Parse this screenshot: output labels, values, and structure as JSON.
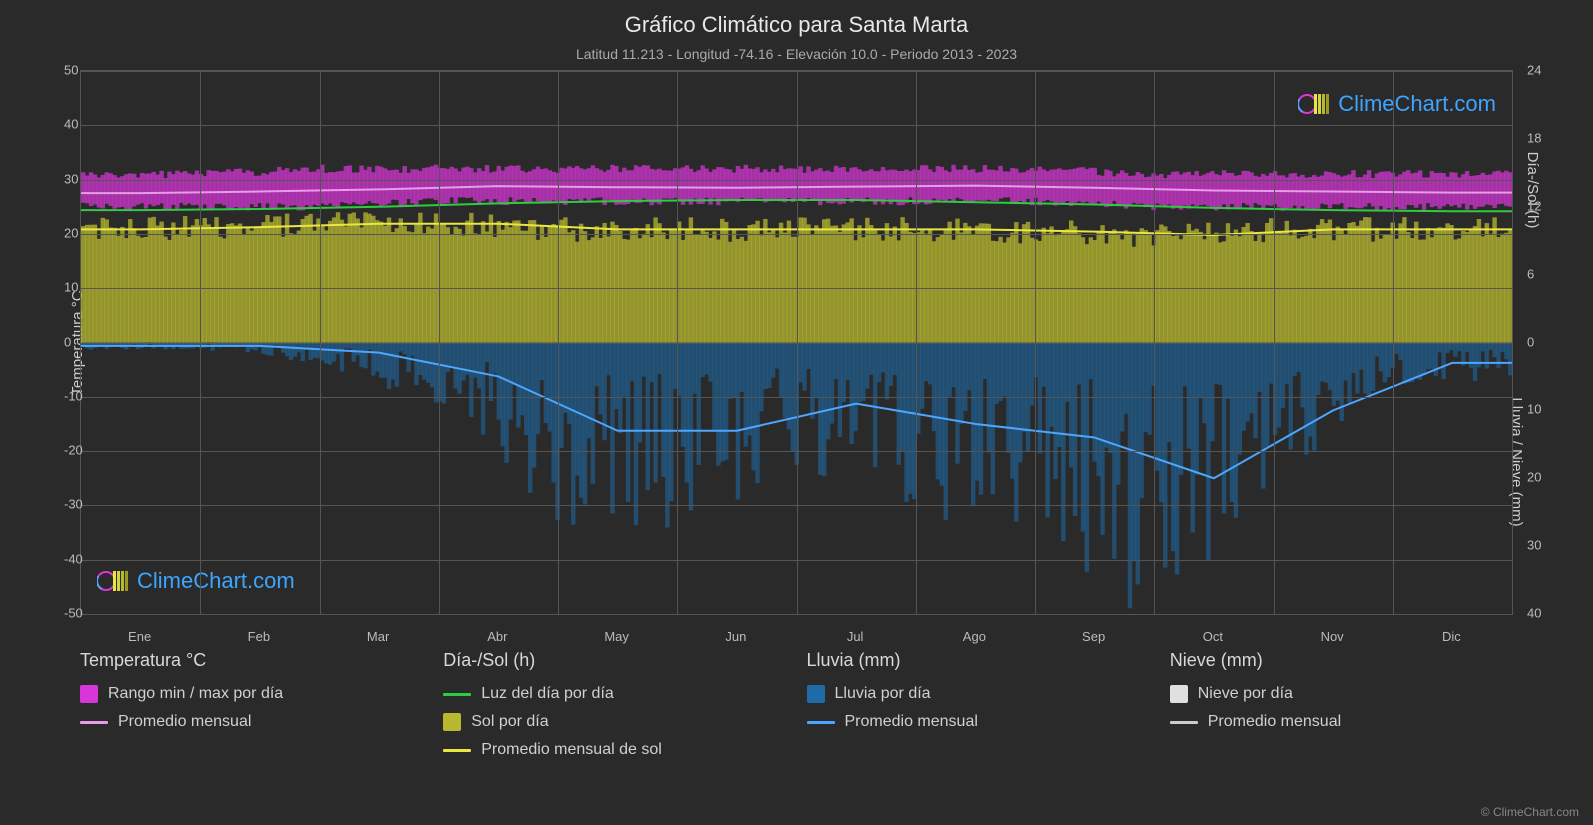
{
  "title": "Gráfico Climático para Santa Marta",
  "subtitle": "Latitud 11.213 - Longitud -74.16 - Elevación 10.0 - Periodo 2013 - 2023",
  "watermark_text": "ClimeChart.com",
  "copyright": "© ClimeChart.com",
  "background_color": "#2a2a2a",
  "grid_color": "#555555",
  "text_color": "#d0d0d0",
  "chart": {
    "months": [
      "Ene",
      "Feb",
      "Mar",
      "Abr",
      "May",
      "Jun",
      "Jul",
      "Ago",
      "Sep",
      "Oct",
      "Nov",
      "Dic"
    ],
    "y_left": {
      "title": "Temperatura °C",
      "min": -50,
      "max": 50,
      "step": 10
    },
    "y_right_top": {
      "title": "Día-/Sol (h)",
      "min": 0,
      "max": 24,
      "step": 6
    },
    "y_right_bottom": {
      "title": "Lluvia / Nieve (mm)",
      "min": 0,
      "max": 40,
      "step": 10
    },
    "series": {
      "temp_range": {
        "type": "band",
        "color": "#d936d9",
        "opacity": 0.75,
        "low_c": [
          25,
          25,
          25,
          26,
          26,
          26,
          26,
          26,
          26,
          25,
          25,
          25
        ],
        "high_c": [
          31,
          31,
          32,
          32,
          32,
          32,
          32,
          32,
          32,
          31,
          31,
          31
        ]
      },
      "temp_avg": {
        "type": "line",
        "color": "#e89be8",
        "width": 2,
        "values_c": [
          27.5,
          27.8,
          28.2,
          28.8,
          28.6,
          28.5,
          28.7,
          28.9,
          28.5,
          28.0,
          27.8,
          27.6
        ]
      },
      "daylight": {
        "type": "line",
        "color": "#2ecc40",
        "width": 2,
        "values_h": [
          11.7,
          11.8,
          12.0,
          12.3,
          12.5,
          12.6,
          12.6,
          12.4,
          12.2,
          11.9,
          11.7,
          11.6
        ],
        "note": "plotted on right-top axis mapped to upper half"
      },
      "sun_daily": {
        "type": "area",
        "color": "#b8b830",
        "opacity": 0.7,
        "values_h": [
          10.0,
          10.2,
          10.5,
          10.5,
          10.0,
          10.0,
          10.0,
          10.0,
          9.8,
          9.5,
          10.0,
          10.0
        ]
      },
      "sun_avg": {
        "type": "line",
        "color": "#e8e840",
        "width": 2,
        "values_h": [
          10.0,
          10.2,
          10.5,
          10.5,
          10.0,
          10.0,
          10.0,
          10.0,
          9.8,
          9.5,
          10.0,
          10.0
        ]
      },
      "rain_daily": {
        "type": "bars",
        "color": "#1e6ba8",
        "opacity": 0.55
      },
      "rain_avg": {
        "type": "line",
        "color": "#4da6ff",
        "width": 2,
        "values_mm": [
          0.5,
          0.5,
          1.5,
          5,
          13,
          13,
          9,
          12,
          14,
          20,
          10,
          3
        ]
      },
      "snow_daily": {
        "type": "bars",
        "color": "#e0e0e0",
        "values_mm": [
          0,
          0,
          0,
          0,
          0,
          0,
          0,
          0,
          0,
          0,
          0,
          0
        ]
      },
      "snow_avg": {
        "type": "line",
        "color": "#cccccc",
        "values_mm": [
          0,
          0,
          0,
          0,
          0,
          0,
          0,
          0,
          0,
          0,
          0,
          0
        ]
      }
    }
  },
  "legends": {
    "temp": {
      "title": "Temperatura °C",
      "items": [
        {
          "swatch": "#d936d9",
          "type": "block",
          "label": "Rango min / max por día"
        },
        {
          "swatch": "#e89be8",
          "type": "line",
          "label": "Promedio mensual"
        }
      ]
    },
    "daysol": {
      "title": "Día-/Sol (h)",
      "items": [
        {
          "swatch": "#2ecc40",
          "type": "line",
          "label": "Luz del día por día"
        },
        {
          "swatch": "#b8b830",
          "type": "block",
          "label": "Sol por día"
        },
        {
          "swatch": "#e8e840",
          "type": "line",
          "label": "Promedio mensual de sol"
        }
      ]
    },
    "rain": {
      "title": "Lluvia (mm)",
      "items": [
        {
          "swatch": "#1e6ba8",
          "type": "block",
          "label": "Lluvia por día"
        },
        {
          "swatch": "#4da6ff",
          "type": "line",
          "label": "Promedio mensual"
        }
      ]
    },
    "snow": {
      "title": "Nieve (mm)",
      "items": [
        {
          "swatch": "#e0e0e0",
          "type": "block",
          "label": "Nieve por día"
        },
        {
          "swatch": "#cccccc",
          "type": "line",
          "label": "Promedio mensual"
        }
      ]
    }
  }
}
